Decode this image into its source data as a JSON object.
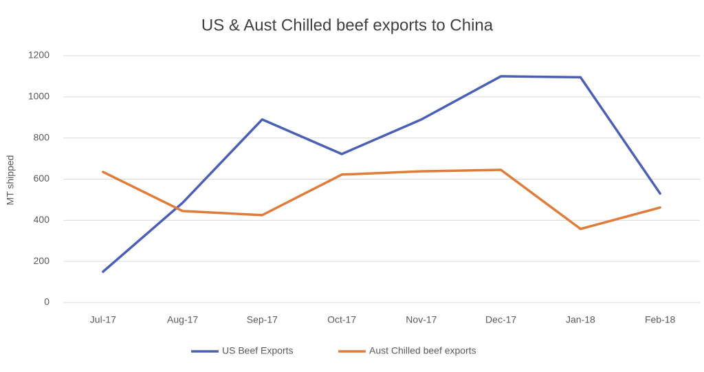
{
  "chart_data": {
    "type": "line",
    "title": "US & Aust Chilled beef exports to China",
    "ylabel": "MT shipped",
    "categories": [
      "Jul-17",
      "Aug-17",
      "Sep-17",
      "Oct-17",
      "Nov-17",
      "Dec-17",
      "Jan-18",
      "Feb-18"
    ],
    "series": [
      {
        "name": "US Beef Exports",
        "color": "#4a5fb5",
        "values": [
          150,
          485,
          890,
          722,
          890,
          1100,
          1095,
          530
        ]
      },
      {
        "name": "Aust Chilled beef exports",
        "color": "#e07b39",
        "values": [
          635,
          445,
          425,
          622,
          638,
          645,
          358,
          462
        ]
      }
    ],
    "ylim": [
      0,
      1200
    ],
    "yticks": [
      0,
      200,
      400,
      600,
      800,
      1000,
      1200
    ],
    "grid": true,
    "legend": "bottom"
  }
}
